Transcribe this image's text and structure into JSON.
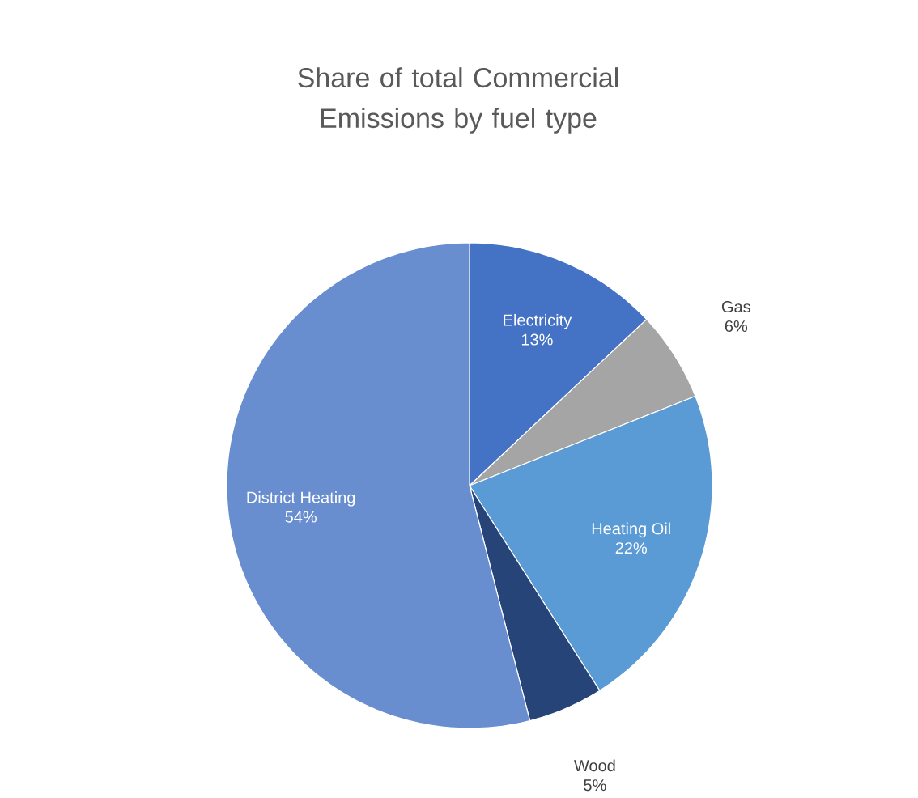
{
  "chart_data": {
    "type": "pie",
    "title": "Share of total Commercial Emissions by fuel type",
    "categories": [
      "Electricity",
      "Gas",
      "Heating Oil",
      "Wood",
      "District Heating"
    ],
    "values": [
      13,
      6,
      22,
      5,
      54
    ],
    "value_labels": [
      "13%",
      "6%",
      "22%",
      "5%",
      "54%"
    ],
    "colors": [
      "#4472c4",
      "#a5a5a5",
      "#5b9bd5",
      "#264478",
      "#698ed0"
    ]
  }
}
